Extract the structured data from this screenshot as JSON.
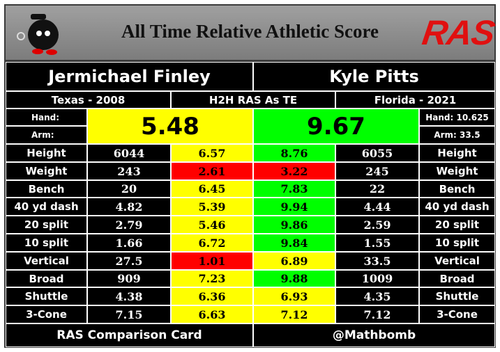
{
  "header": {
    "title": "All Time Relative Athletic Score",
    "logo": "RAS"
  },
  "players": [
    {
      "name": "Jermichael Finley",
      "school": "Texas - 2008",
      "hand": "Hand:",
      "arm": "Arm:",
      "ras": "5.48",
      "ras_color": "#ffff00"
    },
    {
      "name": "Kyle Pitts",
      "school": "Florida - 2021",
      "hand": "Hand: 10.625",
      "arm": "Arm: 33.5",
      "ras": "9.67",
      "ras_color": "#00ff00"
    }
  ],
  "comparison_label": "H2H RAS As TE",
  "table": {
    "rows": [
      [
        "Height",
        "6044",
        "6.57",
        "8.76",
        "6055",
        "Height"
      ],
      [
        "Weight",
        "243",
        "2.61",
        "3.22",
        "245",
        "Weight"
      ],
      [
        "Bench",
        "20",
        "6.45",
        "7.83",
        "22",
        "Bench"
      ],
      [
        "40 yd dash",
        "4.82",
        "5.39",
        "9.94",
        "4.44",
        "40 yd dash"
      ],
      [
        "20 split",
        "2.79",
        "5.46",
        "9.86",
        "2.59",
        "20 split"
      ],
      [
        "10 split",
        "1.66",
        "6.72",
        "9.84",
        "1.55",
        "10 split"
      ],
      [
        "Vertical",
        "27.5",
        "1.01",
        "6.89",
        "33.5",
        "Vertical"
      ],
      [
        "Broad",
        "909",
        "7.23",
        "9.88",
        "1009",
        "Broad"
      ],
      [
        "Shuttle",
        "4.38",
        "6.36",
        "6.93",
        "4.35",
        "Shuttle"
      ],
      [
        "3-Cone",
        "7.15",
        "6.63",
        "7.12",
        "7.12",
        "3-Cone"
      ]
    ],
    "colors": [
      [
        "#ffff00",
        "#00ff00"
      ],
      [
        "#ff0000",
        "#ff0000"
      ],
      [
        "#ffff00",
        "#00ff00"
      ],
      [
        "#ffff00",
        "#00ff00"
      ],
      [
        "#ffff00",
        "#00ff00"
      ],
      [
        "#ffff00",
        "#00ff00"
      ],
      [
        "#ff0000",
        "#ffff00"
      ],
      [
        "#ffff00",
        "#00ff00"
      ],
      [
        "#ffff00",
        "#ffff00"
      ],
      [
        "#ffff00",
        "#ffff00"
      ]
    ]
  },
  "footer": {
    "left": "RAS Comparison Card",
    "right": "@Mathbomb"
  }
}
